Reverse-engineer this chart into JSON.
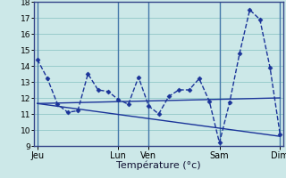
{
  "background_color": "#cce8e8",
  "grid_color": "#99cccc",
  "line_color": "#1a3399",
  "ylim": [
    9,
    18
  ],
  "yticks": [
    9,
    10,
    11,
    12,
    13,
    14,
    15,
    16,
    17,
    18
  ],
  "xlabel": "Température (°c)",
  "xlabel_fontsize": 8,
  "tick_labels_x": [
    "Jeu",
    "Lun",
    "Ven",
    "Sam",
    "Dim"
  ],
  "tick_positions_x": [
    0,
    8,
    11,
    18,
    24
  ],
  "xlim": [
    -0.3,
    24.3
  ],
  "series": [
    {
      "x": [
        0,
        1,
        2,
        3,
        4,
        5,
        6,
        7,
        8,
        9,
        10,
        11,
        12,
        13,
        14,
        15,
        16,
        17,
        18,
        19,
        20,
        21,
        22,
        23,
        24
      ],
      "y": [
        14.4,
        13.2,
        11.6,
        11.1,
        11.2,
        13.5,
        12.5,
        12.4,
        11.9,
        11.6,
        13.3,
        11.5,
        11.0,
        12.1,
        12.5,
        12.5,
        13.2,
        11.8,
        9.2,
        11.7,
        14.8,
        17.5,
        16.9,
        13.9,
        9.7
      ],
      "marker": "D",
      "markersize": 2.5,
      "linestyle": "--",
      "linewidth": 1.0
    },
    {
      "x": [
        0,
        24
      ],
      "y": [
        11.65,
        9.6
      ],
      "marker": null,
      "linestyle": "-",
      "linewidth": 1.0
    },
    {
      "x": [
        0,
        24
      ],
      "y": [
        11.65,
        12.0
      ],
      "marker": null,
      "linestyle": "-",
      "linewidth": 1.0
    }
  ],
  "vlines": [
    0,
    8,
    11,
    18,
    24
  ],
  "vline_color": "#4477aa",
  "spine_color": "#334488"
}
